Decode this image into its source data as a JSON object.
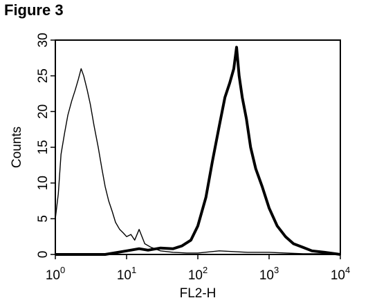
{
  "figure_label": "Figure 3",
  "chart_data": {
    "type": "area",
    "title": "",
    "xlabel": "FL2-H",
    "ylabel": "Counts",
    "x_scale": "log",
    "xlim": [
      1,
      10000
    ],
    "ylim": [
      0,
      30
    ],
    "grid": false,
    "legend": "none",
    "x_ticks": [
      {
        "base": "10",
        "exp": "0",
        "value": 1
      },
      {
        "base": "10",
        "exp": "1",
        "value": 10
      },
      {
        "base": "10",
        "exp": "2",
        "value": 100
      },
      {
        "base": "10",
        "exp": "3",
        "value": 1000
      },
      {
        "base": "10",
        "exp": "4",
        "value": 10000
      }
    ],
    "y_ticks": [
      0,
      5,
      10,
      15,
      20,
      25,
      30
    ],
    "series": [
      {
        "style": "thin",
        "x": [
          1.0,
          1.1,
          1.2,
          1.35,
          1.5,
          1.7,
          1.9,
          2.1,
          2.3,
          2.5,
          2.8,
          3.1,
          3.5,
          4.0,
          4.5,
          5.0,
          5.6,
          6.3,
          7.0,
          8.0,
          9.0,
          10.0,
          11.5,
          13,
          15,
          18,
          22,
          30,
          45,
          70,
          100,
          200,
          500,
          1000,
          3000,
          10000
        ],
        "y": [
          5.0,
          8.5,
          14.0,
          17.0,
          19.5,
          21.5,
          23.0,
          24.5,
          26.0,
          25.0,
          23.0,
          21.0,
          18.0,
          15.0,
          12.0,
          9.5,
          7.5,
          6.0,
          4.5,
          3.5,
          3.0,
          2.5,
          2.8,
          2.0,
          3.5,
          1.5,
          1.0,
          0.5,
          0.3,
          0.2,
          0.2,
          0.5,
          0.3,
          0.3,
          0.1,
          0.1
        ]
      },
      {
        "style": "thick",
        "x": [
          1.0,
          5.0,
          10.0,
          15,
          20,
          30,
          45,
          60,
          80,
          100,
          130,
          160,
          200,
          240,
          280,
          320,
          350,
          380,
          420,
          480,
          550,
          650,
          800,
          1000,
          1300,
          1700,
          2200,
          3000,
          4000,
          6000,
          10000
        ],
        "y": [
          0,
          0,
          0.5,
          0.8,
          0.6,
          0.9,
          0.8,
          1.2,
          2.0,
          4.0,
          8.0,
          13.0,
          18.0,
          22.0,
          24.0,
          26.0,
          29.0,
          25.0,
          22.0,
          19.0,
          15.0,
          12.0,
          9.5,
          6.5,
          4.0,
          2.5,
          1.5,
          1.0,
          0.5,
          0.3,
          0
        ]
      }
    ]
  }
}
